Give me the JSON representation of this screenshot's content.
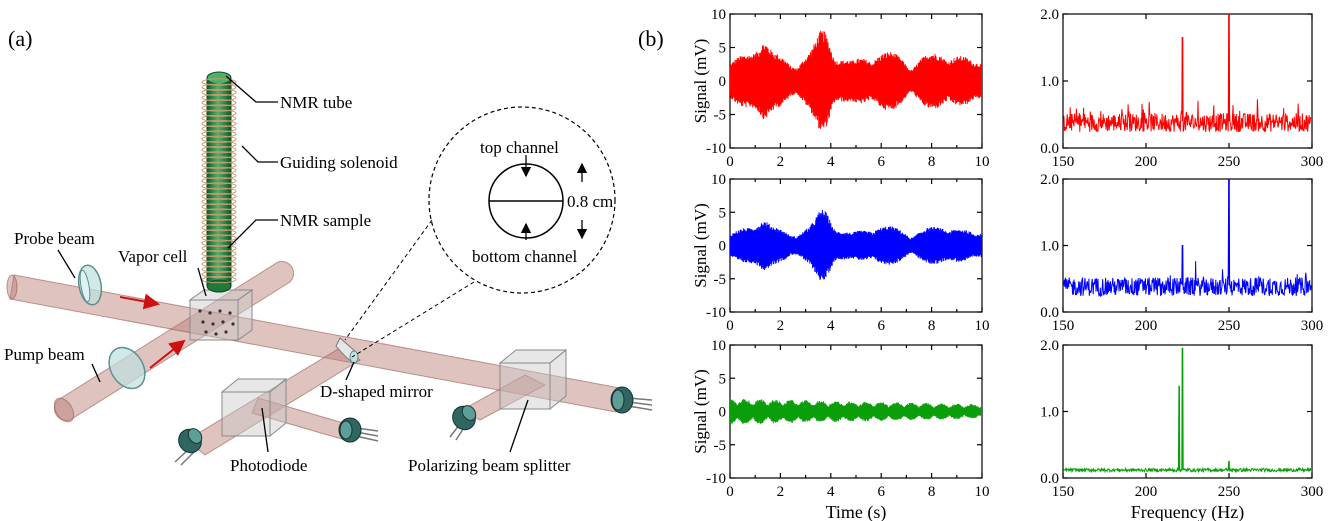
{
  "panel_a": {
    "label": "(a)",
    "labels": {
      "nmr_tube": "NMR tube",
      "guiding_solenoid": "Guiding solenoid",
      "nmr_sample": "NMR sample",
      "probe_beam": "Probe beam",
      "vapor_cell": "Vapor cell",
      "pump_beam": "Pump beam",
      "d_shaped_mirror": "D-shaped mirror",
      "photodiode": "Photodiode",
      "polarizing_beam_splitter": "Polarizing beam splitter"
    },
    "inset": {
      "top_channel": "top channel",
      "bottom_channel": "bottom channel",
      "dimension": "0.8 cm"
    }
  },
  "panel_b": {
    "label": "(b)"
  },
  "colors": {
    "red": "#ff0000",
    "blue": "#0000ff",
    "green": "#0a9e0a",
    "beam": "#b97a72",
    "sample": "#1f7a3a"
  },
  "chart_data": [
    {
      "type": "line",
      "panel": "time-red",
      "xlabel": "",
      "ylabel": "Signal (mV)",
      "xlim": [
        0,
        10
      ],
      "ylim": [
        -10,
        10
      ],
      "xticks": [
        0,
        2,
        4,
        6,
        8,
        10
      ],
      "yticks": [
        -10,
        -5,
        0,
        5,
        10
      ],
      "series": [
        {
          "color": "#ff0000",
          "envelope_peak_mV": 7,
          "envelope_peak_time_s": 3.7
        }
      ]
    },
    {
      "type": "line",
      "panel": "spectrum-red",
      "xlabel": "",
      "ylabel": "",
      "xlim": [
        150,
        300
      ],
      "ylim": [
        0,
        2
      ],
      "xticks": [
        150,
        200,
        250,
        300
      ],
      "yticks": [
        "0.0",
        "1.0",
        "2.0"
      ],
      "series": [
        {
          "color": "#ff0000",
          "noise_floor": 0.4,
          "peaks": [
            {
              "x": 222,
              "y": 1.65
            },
            {
              "x": 250,
              "y": 2.0
            }
          ]
        }
      ]
    },
    {
      "type": "line",
      "panel": "time-blue",
      "xlabel": "",
      "ylabel": "Signal (mV)",
      "xlim": [
        0,
        10
      ],
      "ylim": [
        -10,
        10
      ],
      "xticks": [
        0,
        2,
        4,
        6,
        8,
        10
      ],
      "yticks": [
        -10,
        -5,
        0,
        5,
        10
      ],
      "series": [
        {
          "color": "#0000ff",
          "envelope_peak_mV": 4.6,
          "envelope_peak_time_s": 3.7
        }
      ]
    },
    {
      "type": "line",
      "panel": "spectrum-blue",
      "xlabel": "",
      "ylabel": "",
      "xlim": [
        150,
        300
      ],
      "ylim": [
        0,
        2
      ],
      "xticks": [
        150,
        200,
        250,
        300
      ],
      "yticks": [
        "0.0",
        "1.0",
        "2.0"
      ],
      "series": [
        {
          "color": "#0000ff",
          "noise_floor": 0.4,
          "peaks": [
            {
              "x": 222,
              "y": 1.0
            },
            {
              "x": 250,
              "y": 2.0
            }
          ]
        }
      ]
    },
    {
      "type": "line",
      "panel": "time-green",
      "xlabel": "Time (s)",
      "ylabel": "Signal (mV)",
      "xlim": [
        0,
        10
      ],
      "ylim": [
        -10,
        10
      ],
      "xticks": [
        0,
        2,
        4,
        6,
        8,
        10
      ],
      "yticks": [
        -10,
        -5,
        0,
        5,
        10
      ],
      "series": [
        {
          "color": "#0a9e0a",
          "envelope_peak_mV": 2.3,
          "beat_period_s": 0.6
        }
      ]
    },
    {
      "type": "line",
      "panel": "spectrum-green",
      "xlabel": "Frequency (Hz)",
      "ylabel": "",
      "xlim": [
        150,
        300
      ],
      "ylim": [
        0,
        2
      ],
      "xticks": [
        150,
        200,
        250,
        300
      ],
      "yticks": [
        "0.0",
        "1.0",
        "2.0"
      ],
      "series": [
        {
          "color": "#0a9e0a",
          "noise_floor": 0.12,
          "peaks": [
            {
              "x": 220,
              "y": 1.38
            },
            {
              "x": 222,
              "y": 1.95
            },
            {
              "x": 250,
              "y": 0.25
            }
          ]
        }
      ]
    }
  ]
}
